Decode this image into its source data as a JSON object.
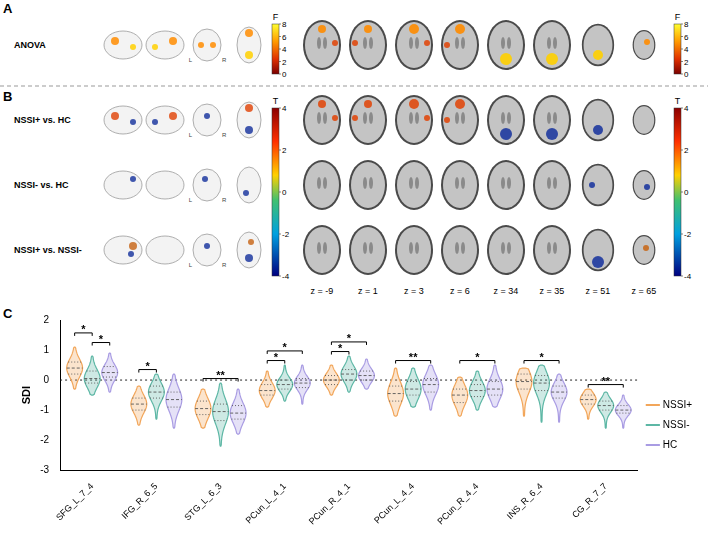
{
  "panel_a": {
    "panel_label": "A",
    "rows": [
      "ANOVA"
    ],
    "colorbar": {
      "title": "F",
      "range": [
        0,
        8
      ],
      "ticks": [
        0,
        2,
        4,
        6,
        8
      ]
    }
  },
  "panel_b": {
    "panel_label": "B",
    "rows": [
      "NSSI+ vs. HC",
      "NSSI- vs. HC",
      "NSSI+ vs. NSSI-"
    ],
    "colorbar": {
      "title": "T",
      "range": [
        -4,
        4
      ],
      "ticks": [
        -4,
        -2,
        0,
        2,
        4
      ]
    }
  },
  "view_labels": [
    "L",
    "R"
  ],
  "slices": [
    "z = -9",
    "z = 1",
    "z = 3",
    "z = 6",
    "z = 34",
    "z = 35",
    "z = 51",
    "z = 65"
  ],
  "chart_data": {
    "type": "violin",
    "panel_label": "C",
    "y_label": "SDI",
    "categories": [
      "SFG_L_7_4",
      "IFG_R_6_5",
      "STG_L_6_3",
      "PCun_L_4_1",
      "PCun_R_4_1",
      "PCun_L_4_4",
      "PCun_R_4_4",
      "INS_R_6_4",
      "CG_R_7_7"
    ],
    "series": [
      {
        "name": "NSSI+",
        "color": "#F2A65A",
        "values": [
          {
            "min": -0.3,
            "q1": 0.2,
            "median": 0.4,
            "q3": 0.6,
            "max": 1.1
          },
          {
            "min": -1.5,
            "q1": -1.0,
            "median": -0.8,
            "q3": -0.6,
            "max": -0.2
          },
          {
            "min": -1.6,
            "q1": -1.15,
            "median": -0.95,
            "q3": -0.7,
            "max": -0.3
          },
          {
            "min": -0.9,
            "q1": -0.5,
            "median": -0.35,
            "q3": -0.15,
            "max": 0.3
          },
          {
            "min": -0.5,
            "q1": -0.15,
            "median": 0.0,
            "q3": 0.15,
            "max": 0.5
          },
          {
            "min": -1.2,
            "q1": -0.7,
            "median": -0.45,
            "q3": -0.2,
            "max": 0.4
          },
          {
            "min": -1.2,
            "q1": -0.75,
            "median": -0.5,
            "q3": -0.3,
            "max": 0.1
          },
          {
            "min": -1.2,
            "q1": -0.3,
            "median": -0.05,
            "q3": 0.2,
            "max": 0.4
          },
          {
            "min": -1.3,
            "q1": -0.8,
            "median": -0.65,
            "q3": -0.5,
            "max": -0.3
          }
        ]
      },
      {
        "name": "NSSI-",
        "color": "#5DB7A5",
        "values": [
          {
            "min": -0.5,
            "q1": -0.1,
            "median": 0.05,
            "q3": 0.3,
            "max": 0.8
          },
          {
            "min": -1.3,
            "q1": -0.6,
            "median": -0.4,
            "q3": -0.2,
            "max": 0.2
          },
          {
            "min": -2.2,
            "q1": -1.35,
            "median": -1.05,
            "q3": -0.8,
            "max": -0.1
          },
          {
            "min": -0.7,
            "q1": -0.3,
            "median": -0.15,
            "q3": 0.0,
            "max": 0.5
          },
          {
            "min": -0.4,
            "q1": 0.0,
            "median": 0.2,
            "q3": 0.35,
            "max": 0.8
          },
          {
            "min": -0.9,
            "q1": -0.5,
            "median": -0.3,
            "q3": -0.05,
            "max": 0.4
          },
          {
            "min": -1.0,
            "q1": -0.55,
            "median": -0.35,
            "q3": -0.15,
            "max": 0.3
          },
          {
            "min": -1.4,
            "q1": -0.35,
            "median": -0.1,
            "q3": 0.15,
            "max": 0.5
          },
          {
            "min": -1.6,
            "q1": -1.0,
            "median": -0.85,
            "q3": -0.7,
            "max": -0.4
          }
        ]
      },
      {
        "name": "HC",
        "color": "#A99CE3",
        "values": [
          {
            "min": -0.4,
            "q1": 0.1,
            "median": 0.25,
            "q3": 0.45,
            "max": 0.9
          },
          {
            "min": -1.6,
            "q1": -0.9,
            "median": -0.65,
            "q3": -0.4,
            "max": 0.2
          },
          {
            "min": -1.8,
            "q1": -1.3,
            "median": -1.1,
            "q3": -0.85,
            "max": -0.3
          },
          {
            "min": -0.8,
            "q1": -0.25,
            "median": -0.1,
            "q3": 0.05,
            "max": 0.5
          },
          {
            "min": -0.3,
            "q1": 0.0,
            "median": 0.15,
            "q3": 0.3,
            "max": 0.7
          },
          {
            "min": -1.0,
            "q1": -0.4,
            "median": -0.15,
            "q3": 0.05,
            "max": 0.5
          },
          {
            "min": -0.9,
            "q1": -0.5,
            "median": -0.3,
            "q3": -0.05,
            "max": 0.5
          },
          {
            "min": -1.4,
            "q1": -0.6,
            "median": -0.4,
            "q3": -0.2,
            "max": 0.2
          },
          {
            "min": -1.6,
            "q1": -1.1,
            "median": -1.0,
            "q3": -0.85,
            "max": -0.5
          }
        ]
      }
    ],
    "comparisons": [
      {
        "category": "SFG_L_7_4",
        "groups": [
          "NSSI-",
          "HC"
        ],
        "label": "*"
      },
      {
        "category": "SFG_L_7_4",
        "groups": [
          "NSSI+",
          "NSSI-"
        ],
        "label": "*"
      },
      {
        "category": "IFG_R_6_5",
        "groups": [
          "NSSI+",
          "NSSI-"
        ],
        "label": "*"
      },
      {
        "category": "STG_L_6_3",
        "groups": [
          "NSSI+",
          "HC"
        ],
        "label": "**"
      },
      {
        "category": "PCun_L_4_1",
        "groups": [
          "NSSI+",
          "NSSI-"
        ],
        "label": "*"
      },
      {
        "category": "PCun_L_4_1",
        "groups": [
          "NSSI+",
          "HC"
        ],
        "label": "*"
      },
      {
        "category": "PCun_R_4_1",
        "groups": [
          "NSSI+",
          "NSSI-"
        ],
        "label": "*"
      },
      {
        "category": "PCun_R_4_1",
        "groups": [
          "NSSI+",
          "HC"
        ],
        "label": "*"
      },
      {
        "category": "PCun_L_4_4",
        "groups": [
          "NSSI+",
          "HC"
        ],
        "label": "**"
      },
      {
        "category": "PCun_R_4_4",
        "groups": [
          "NSSI+",
          "HC"
        ],
        "label": "*"
      },
      {
        "category": "INS_R_6_4",
        "groups": [
          "NSSI+",
          "HC"
        ],
        "label": "*"
      },
      {
        "category": "CG_R_7_7",
        "groups": [
          "NSSI+",
          "HC"
        ],
        "label": "**"
      }
    ],
    "reference_y": 0,
    "ylim": [
      -3,
      2
    ],
    "yticks": [
      -3,
      -2,
      -1,
      0,
      1,
      2
    ],
    "grid": false,
    "legend": "right"
  }
}
